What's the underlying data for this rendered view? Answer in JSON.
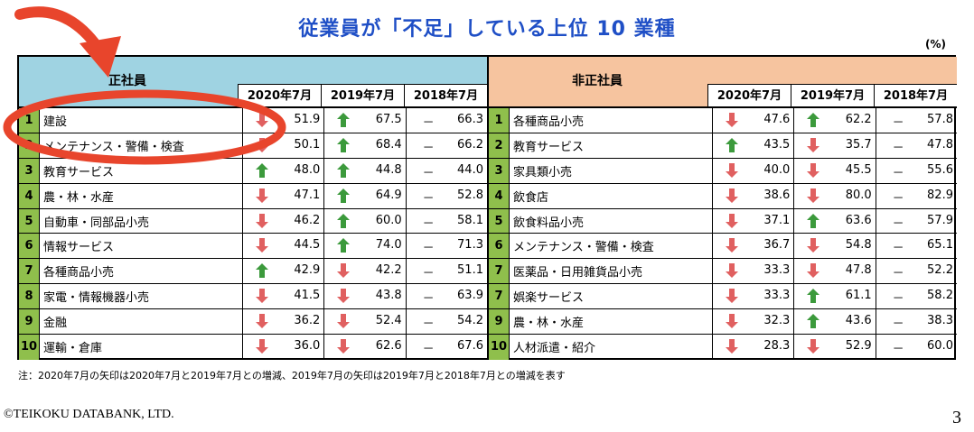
{
  "title": "従業員が「不足」している上位 10 業種",
  "unit": "(%)",
  "years": [
    "2020年7月",
    "2019年7月",
    "2018年7月"
  ],
  "colors": {
    "up": "#3c9a3c",
    "down": "#e06060",
    "rank_bg": "#8fbf4c"
  },
  "left": {
    "label": "正社員",
    "rows": [
      {
        "rank": "1",
        "industry": "建設",
        "v2020": "51.9",
        "a2020": "down",
        "v2019": "67.5",
        "a2019": "up",
        "v2018": "66.3"
      },
      {
        "rank": "2",
        "industry": "メンテナンス・警備・検査",
        "v2020": "50.1",
        "a2020": "down",
        "v2019": "68.4",
        "a2019": "up",
        "v2018": "66.2"
      },
      {
        "rank": "3",
        "industry": "教育サービス",
        "v2020": "48.0",
        "a2020": "up",
        "v2019": "44.8",
        "a2019": "up",
        "v2018": "44.0"
      },
      {
        "rank": "4",
        "industry": "農・林・水産",
        "v2020": "47.1",
        "a2020": "down",
        "v2019": "64.9",
        "a2019": "up",
        "v2018": "52.8"
      },
      {
        "rank": "5",
        "industry": "自動車・同部品小売",
        "v2020": "46.2",
        "a2020": "down",
        "v2019": "60.0",
        "a2019": "up",
        "v2018": "58.1"
      },
      {
        "rank": "6",
        "industry": "情報サービス",
        "v2020": "44.5",
        "a2020": "down",
        "v2019": "74.0",
        "a2019": "up",
        "v2018": "71.3"
      },
      {
        "rank": "7",
        "industry": "各種商品小売",
        "v2020": "42.9",
        "a2020": "up",
        "v2019": "42.2",
        "a2019": "down",
        "v2018": "51.1"
      },
      {
        "rank": "8",
        "industry": "家電・情報機器小売",
        "v2020": "41.5",
        "a2020": "down",
        "v2019": "43.8",
        "a2019": "down",
        "v2018": "63.9"
      },
      {
        "rank": "9",
        "industry": "金融",
        "v2020": "36.2",
        "a2020": "down",
        "v2019": "52.4",
        "a2019": "down",
        "v2018": "54.2"
      },
      {
        "rank": "10",
        "industry": "運輸・倉庫",
        "v2020": "36.0",
        "a2020": "down",
        "v2019": "62.6",
        "a2019": "down",
        "v2018": "67.6"
      }
    ]
  },
  "right": {
    "label": "非正社員",
    "rows": [
      {
        "rank": "1",
        "industry": "各種商品小売",
        "v2020": "47.6",
        "a2020": "down",
        "v2019": "62.2",
        "a2019": "up",
        "v2018": "57.8"
      },
      {
        "rank": "2",
        "industry": "教育サービス",
        "v2020": "43.5",
        "a2020": "up",
        "v2019": "35.7",
        "a2019": "down",
        "v2018": "47.8"
      },
      {
        "rank": "3",
        "industry": "家具類小売",
        "v2020": "40.0",
        "a2020": "down",
        "v2019": "45.5",
        "a2019": "down",
        "v2018": "55.6"
      },
      {
        "rank": "4",
        "industry": "飲食店",
        "v2020": "38.6",
        "a2020": "down",
        "v2019": "80.0",
        "a2019": "down",
        "v2018": "82.9"
      },
      {
        "rank": "5",
        "industry": "飲食料品小売",
        "v2020": "37.1",
        "a2020": "down",
        "v2019": "63.6",
        "a2019": "up",
        "v2018": "57.9"
      },
      {
        "rank": "6",
        "industry": "メンテナンス・警備・検査",
        "v2020": "36.7",
        "a2020": "down",
        "v2019": "54.8",
        "a2019": "down",
        "v2018": "65.1"
      },
      {
        "rank": "7",
        "industry": "医薬品・日用雑貨品小売",
        "v2020": "33.3",
        "a2020": "down",
        "v2019": "47.8",
        "a2019": "down",
        "v2018": "52.2"
      },
      {
        "rank": "7",
        "industry": "娯楽サービス",
        "v2020": "33.3",
        "a2020": "down",
        "v2019": "61.1",
        "a2019": "up",
        "v2018": "58.2"
      },
      {
        "rank": "9",
        "industry": "農・林・水産",
        "v2020": "32.3",
        "a2020": "down",
        "v2019": "43.6",
        "a2019": "up",
        "v2018": "38.3"
      },
      {
        "rank": "10",
        "industry": "人材派遣・紹介",
        "v2020": "28.3",
        "a2020": "down",
        "v2019": "52.9",
        "a2019": "down",
        "v2018": "60.0"
      }
    ]
  },
  "dash": "－",
  "note": "注：2020年7月の矢印は2020年7月と2019年7月との増減、2019年7月の矢印は2019年7月と2018年7月との増減を表す",
  "copyright": "©TEIKOKU DATABANK, LTD.",
  "page_number": "3"
}
